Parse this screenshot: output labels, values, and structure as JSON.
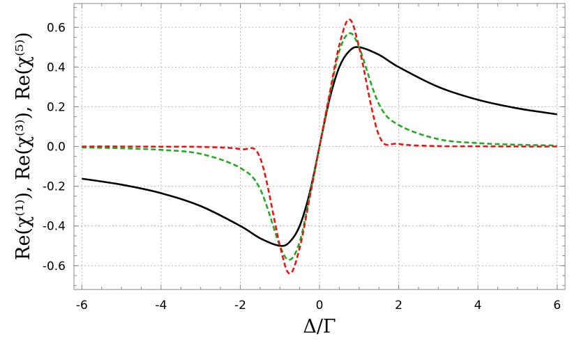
{
  "chart_data": {
    "type": "line",
    "xlabel": "Δ/Γ",
    "ylabel": "Re(χ⁽¹⁾), Re(χ⁽³⁾), Re(χ⁽⁵⁾)",
    "xlim": [
      -6.2,
      6.2
    ],
    "ylim": [
      -0.72,
      0.72
    ],
    "grid": true,
    "x_ticks": [
      -6,
      -4,
      -2,
      0,
      2,
      4,
      6
    ],
    "x_tick_labels": [
      "-6",
      "-4",
      "-2",
      "0",
      "2",
      "4",
      "6"
    ],
    "y_ticks": [
      -0.6,
      -0.4,
      -0.2,
      0.0,
      0.2,
      0.4,
      0.6
    ],
    "y_tick_labels": [
      "-0.6",
      "-0.4",
      "-0.2",
      "0.0",
      "0.2",
      "0.4",
      "0.6"
    ],
    "x": [
      -6,
      -5,
      -4,
      -3,
      -2,
      -1.5,
      -1,
      -0.75,
      -0.5,
      -0.25,
      0,
      0.25,
      0.5,
      0.75,
      1,
      1.5,
      2,
      3,
      4,
      5,
      6
    ],
    "series": [
      {
        "color": "#000000",
        "dash": "solid",
        "values": [
          -0.162,
          -0.192,
          -0.235,
          -0.3,
          -0.4,
          -0.462,
          -0.5,
          -0.48,
          -0.4,
          -0.235,
          0.0,
          0.235,
          0.4,
          0.48,
          0.5,
          0.462,
          0.4,
          0.3,
          0.235,
          0.192,
          0.162
        ]
      },
      {
        "color": "#22aa22",
        "dash": "dashed",
        "values": [
          -0.005,
          -0.009,
          -0.017,
          -0.037,
          -0.108,
          -0.214,
          -0.5,
          -0.57,
          -0.48,
          -0.25,
          0.0,
          0.25,
          0.48,
          0.57,
          0.5,
          0.214,
          0.108,
          0.037,
          0.017,
          0.009,
          0.005
        ]
      },
      {
        "color": "#ee1111",
        "dash": "dashed",
        "values": [
          0.0,
          0.0,
          -0.001,
          -0.002,
          -0.013,
          -0.057,
          -0.5,
          -0.64,
          -0.51,
          -0.26,
          0.0,
          0.26,
          0.51,
          0.64,
          0.5,
          0.057,
          0.013,
          0.002,
          0.001,
          0.0,
          0.0
        ]
      }
    ]
  }
}
